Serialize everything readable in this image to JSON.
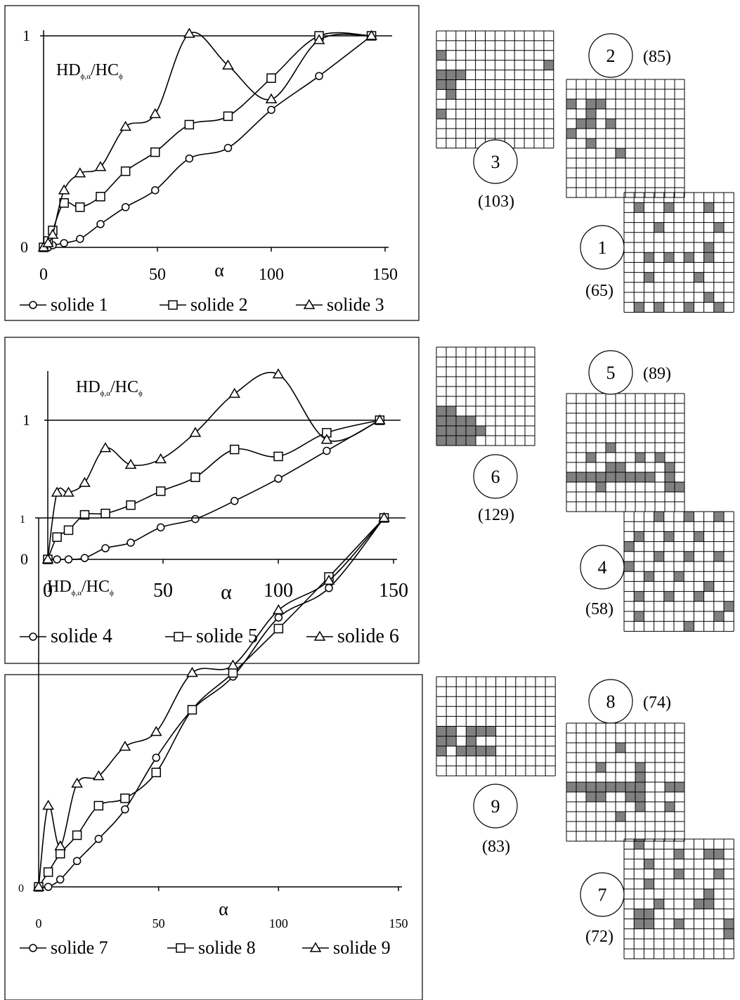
{
  "chart_data": [
    {
      "type": "line",
      "ylabel": "HD",
      "ylabel_sub": "ϕ,α",
      "ylabel_mid": "/HC",
      "ylabel_sub2": "ϕ",
      "xlabel": "α",
      "xlim": [
        0,
        150
      ],
      "ylim": [
        0,
        1
      ],
      "x_ticks": [
        "0",
        "50",
        "100",
        "150"
      ],
      "y_ticks": [
        "0",
        "1"
      ],
      "series": [
        {
          "name": "solide 1",
          "marker": "circle",
          "x": [
            0,
            2,
            4,
            9,
            16,
            25,
            36,
            49,
            64,
            81,
            100,
            121,
            144
          ],
          "y": [
            0,
            0,
            0.01,
            0.02,
            0.04,
            0.11,
            0.19,
            0.27,
            0.42,
            0.47,
            0.65,
            0.81,
            1.0
          ]
        },
        {
          "name": "solide 2",
          "marker": "square",
          "x": [
            0,
            2,
            4,
            9,
            16,
            25,
            36,
            49,
            64,
            81,
            100,
            121,
            144
          ],
          "y": [
            0,
            0.03,
            0.08,
            0.21,
            0.19,
            0.24,
            0.36,
            0.45,
            0.58,
            0.62,
            0.8,
            1.0,
            1.0
          ]
        },
        {
          "name": "solide 3",
          "marker": "triangle",
          "x": [
            0,
            2,
            4,
            9,
            16,
            25,
            36,
            49,
            64,
            81,
            100,
            121,
            144
          ],
          "y": [
            0,
            0.02,
            0.06,
            0.27,
            0.35,
            0.38,
            0.57,
            0.63,
            1.01,
            0.86,
            0.7,
            0.98,
            1.0
          ]
        }
      ]
    },
    {
      "type": "line",
      "ylabel": "HD",
      "ylabel_sub": "ϕ,α",
      "ylabel_mid": "/HC",
      "ylabel_sub2": "ϕ",
      "xlabel": "α",
      "xlim": [
        0,
        150
      ],
      "ylim": [
        0,
        1.35
      ],
      "x_ticks": [
        "0",
        "50",
        "100",
        "150"
      ],
      "y_ticks": [
        "0",
        "1"
      ],
      "series": [
        {
          "name": "solide 4",
          "marker": "circle",
          "x": [
            0,
            4,
            9,
            16,
            25,
            36,
            49,
            64,
            81,
            100,
            121,
            144
          ],
          "y": [
            0,
            0,
            0,
            0.01,
            0.08,
            0.12,
            0.23,
            0.29,
            0.42,
            0.58,
            0.78,
            1.0
          ]
        },
        {
          "name": "solide 5",
          "marker": "square",
          "x": [
            0,
            4,
            9,
            16,
            25,
            36,
            49,
            64,
            81,
            100,
            121,
            144
          ],
          "y": [
            0,
            0.16,
            0.21,
            0.32,
            0.33,
            0.39,
            0.49,
            0.59,
            0.79,
            0.74,
            0.91,
            1.0
          ]
        },
        {
          "name": "solide 6",
          "marker": "triangle",
          "x": [
            0,
            4,
            9,
            16,
            25,
            36,
            49,
            64,
            81,
            100,
            121,
            144
          ],
          "y": [
            0,
            0.48,
            0.48,
            0.55,
            0.8,
            0.68,
            0.72,
            0.91,
            1.19,
            1.33,
            0.86,
            1.0
          ]
        }
      ]
    },
    {
      "type": "line",
      "ylabel": "HD",
      "ylabel_sub": "ϕ,α",
      "ylabel_mid": "/HC",
      "ylabel_sub2": "ϕ",
      "xlabel": "α",
      "xlim": [
        0,
        150
      ],
      "ylim": [
        0,
        1
      ],
      "x_ticks": [
        "0",
        "50",
        "100",
        "150"
      ],
      "y_ticks": [
        "0",
        "1"
      ],
      "series": [
        {
          "name": "solide 7",
          "marker": "circle",
          "x": [
            0,
            4,
            9,
            16,
            25,
            36,
            49,
            64,
            81,
            100,
            121,
            144
          ],
          "y": [
            0,
            0,
            0.02,
            0.07,
            0.13,
            0.21,
            0.35,
            0.48,
            0.57,
            0.73,
            0.81,
            1.0
          ]
        },
        {
          "name": "solide 8",
          "marker": "square",
          "x": [
            0,
            4,
            9,
            16,
            25,
            36,
            49,
            64,
            81,
            100,
            121,
            144
          ],
          "y": [
            0,
            0.04,
            0.09,
            0.14,
            0.22,
            0.24,
            0.31,
            0.48,
            0.58,
            0.7,
            0.84,
            1.0
          ]
        },
        {
          "name": "solide 9",
          "marker": "triangle",
          "x": [
            0,
            4,
            9,
            16,
            25,
            36,
            49,
            64,
            81,
            100,
            121,
            144
          ],
          "y": [
            0,
            0.22,
            0.11,
            0.28,
            0.3,
            0.38,
            0.42,
            0.58,
            0.6,
            0.75,
            0.83,
            1.0
          ]
        }
      ]
    }
  ],
  "patterns": [
    {
      "id": "1",
      "label": "1",
      "count": "(65)",
      "rows": 12,
      "cols": 12,
      "filled": [
        [
          1,
          1
        ],
        [
          1,
          4
        ],
        [
          1,
          8
        ],
        [
          3,
          3
        ],
        [
          3,
          9
        ],
        [
          5,
          8
        ],
        [
          6,
          2
        ],
        [
          6,
          4
        ],
        [
          6,
          6
        ],
        [
          6,
          8
        ],
        [
          8,
          2
        ],
        [
          8,
          7
        ],
        [
          10,
          8
        ],
        [
          11,
          1
        ],
        [
          11,
          3
        ],
        [
          11,
          6
        ],
        [
          11,
          9
        ],
        [
          6,
          11
        ]
      ]
    },
    {
      "id": "2",
      "label": "2",
      "count": "(85)",
      "rows": 12,
      "cols": 12,
      "filled": [
        [
          2,
          0
        ],
        [
          2,
          2
        ],
        [
          2,
          3
        ],
        [
          3,
          2
        ],
        [
          4,
          1
        ],
        [
          4,
          2
        ],
        [
          4,
          4
        ],
        [
          5,
          0
        ],
        [
          6,
          2
        ],
        [
          7,
          5
        ]
      ]
    },
    {
      "id": "3",
      "label": "3",
      "count": "(103)",
      "rows": 12,
      "cols": 12,
      "filled": [
        [
          2,
          0
        ],
        [
          3,
          11
        ],
        [
          4,
          0
        ],
        [
          4,
          1
        ],
        [
          4,
          2
        ],
        [
          5,
          0
        ],
        [
          5,
          1
        ],
        [
          6,
          1
        ],
        [
          8,
          0
        ]
      ]
    },
    {
      "id": "4",
      "label": "4",
      "count": "(58)",
      "rows": 12,
      "cols": 12,
      "filled": [
        [
          0,
          3
        ],
        [
          0,
          6
        ],
        [
          0,
          9
        ],
        [
          2,
          1
        ],
        [
          2,
          4
        ],
        [
          2,
          7
        ],
        [
          2,
          11
        ],
        [
          3,
          0
        ],
        [
          4,
          3
        ],
        [
          4,
          6
        ],
        [
          4,
          9
        ],
        [
          5,
          0
        ],
        [
          5,
          11
        ],
        [
          6,
          2
        ],
        [
          6,
          5
        ],
        [
          7,
          8
        ],
        [
          8,
          1
        ],
        [
          8,
          4
        ],
        [
          8,
          7
        ],
        [
          9,
          10
        ],
        [
          10,
          1
        ],
        [
          10,
          9
        ],
        [
          11,
          6
        ]
      ]
    },
    {
      "id": "5",
      "label": "5",
      "count": "(89)",
      "rows": 12,
      "cols": 12,
      "filled": [
        [
          5,
          4
        ],
        [
          6,
          2
        ],
        [
          6,
          7
        ],
        [
          6,
          9
        ],
        [
          7,
          4
        ],
        [
          7,
          5
        ],
        [
          7,
          10
        ],
        [
          8,
          0
        ],
        [
          8,
          1
        ],
        [
          8,
          2
        ],
        [
          8,
          3
        ],
        [
          8,
          4
        ],
        [
          8,
          5
        ],
        [
          8,
          6
        ],
        [
          8,
          7
        ],
        [
          8,
          8
        ],
        [
          8,
          10
        ],
        [
          9,
          3
        ],
        [
          9,
          10
        ],
        [
          9,
          11
        ]
      ]
    },
    {
      "id": "6",
      "label": "6",
      "count": "(129)",
      "rows": 10,
      "cols": 10,
      "filled": [
        [
          6,
          0
        ],
        [
          6,
          1
        ],
        [
          7,
          0
        ],
        [
          7,
          1
        ],
        [
          7,
          2
        ],
        [
          7,
          3
        ],
        [
          8,
          0
        ],
        [
          8,
          1
        ],
        [
          8,
          2
        ],
        [
          8,
          3
        ],
        [
          8,
          4
        ],
        [
          9,
          0
        ],
        [
          9,
          1
        ],
        [
          9,
          2
        ],
        [
          9,
          3
        ]
      ]
    },
    {
      "id": "7",
      "label": "7",
      "count": "(72)",
      "rows": 12,
      "cols": 12,
      "filled": [
        [
          0,
          1
        ],
        [
          1,
          5
        ],
        [
          1,
          8
        ],
        [
          1,
          9
        ],
        [
          2,
          2
        ],
        [
          3,
          5
        ],
        [
          3,
          9
        ],
        [
          4,
          2
        ],
        [
          5,
          8
        ],
        [
          6,
          3
        ],
        [
          6,
          7
        ],
        [
          6,
          8
        ],
        [
          7,
          1
        ],
        [
          7,
          2
        ],
        [
          8,
          1
        ],
        [
          8,
          2
        ],
        [
          8,
          5
        ],
        [
          8,
          10
        ],
        [
          9,
          10
        ]
      ]
    },
    {
      "id": "8",
      "label": "8",
      "count": "(74)",
      "rows": 12,
      "cols": 12,
      "filled": [
        [
          2,
          5
        ],
        [
          4,
          3
        ],
        [
          4,
          7
        ],
        [
          5,
          7
        ],
        [
          6,
          0
        ],
        [
          6,
          1
        ],
        [
          6,
          2
        ],
        [
          6,
          3
        ],
        [
          6,
          4
        ],
        [
          6,
          5
        ],
        [
          6,
          6
        ],
        [
          6,
          7
        ],
        [
          6,
          10
        ],
        [
          6,
          11
        ],
        [
          7,
          2
        ],
        [
          7,
          3
        ],
        [
          7,
          6
        ],
        [
          7,
          7
        ],
        [
          8,
          7
        ],
        [
          8,
          10
        ],
        [
          9,
          5
        ]
      ]
    },
    {
      "id": "9",
      "label": "9",
      "count": "(83)",
      "rows": 10,
      "cols": 12,
      "filled": [
        [
          5,
          0
        ],
        [
          5,
          1
        ],
        [
          5,
          3
        ],
        [
          5,
          4
        ],
        [
          5,
          5
        ],
        [
          6,
          0
        ],
        [
          6,
          1
        ],
        [
          6,
          3
        ],
        [
          7,
          0
        ],
        [
          7,
          2
        ],
        [
          7,
          3
        ],
        [
          7,
          4
        ],
        [
          7,
          5
        ]
      ]
    }
  ]
}
